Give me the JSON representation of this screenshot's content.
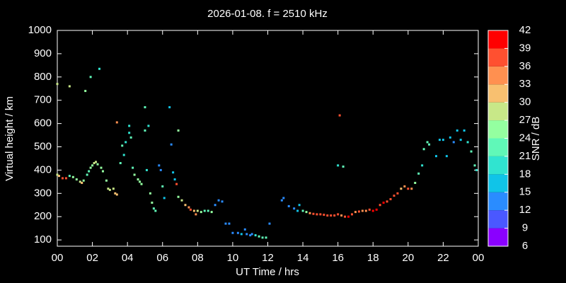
{
  "chart_data": {
    "type": "scatter",
    "title": "2026-01-08. f = 2510 kHz",
    "xlabel": "UT Time / hrs",
    "ylabel": "Virtual height / km",
    "xlim": [
      0,
      24
    ],
    "xticks": [
      {
        "value": 0,
        "label": "00"
      },
      {
        "value": 2,
        "label": "02"
      },
      {
        "value": 4,
        "label": "04"
      },
      {
        "value": 6,
        "label": "06"
      },
      {
        "value": 8,
        "label": "08"
      },
      10,
      12,
      14,
      16,
      18,
      20,
      22,
      {
        "value": 24,
        "label": "00"
      }
    ],
    "ylim": [
      73,
      1000
    ],
    "yticks": [
      100,
      200,
      300,
      400,
      500,
      600,
      700,
      800,
      900,
      1000
    ],
    "colorbar": {
      "label": "SNR / dB",
      "lim": [
        6,
        42
      ],
      "ticks": [
        6,
        9,
        12,
        15,
        18,
        21,
        24,
        27,
        30,
        33,
        36,
        39,
        42
      ],
      "colors": [
        "#8a00ff",
        "#4a58ff",
        "#2a8cff",
        "#10c4e8",
        "#30e4d0",
        "#60f8b8",
        "#94ffa0",
        "#c8e888",
        "#f8c070",
        "#ff9050",
        "#ff5030",
        "#ff0000"
      ]
    },
    "x": [
      0,
      0.1,
      0.3,
      0.5,
      0.7,
      0.9,
      1.1,
      1.3,
      1.4,
      1.5,
      1.7,
      1.8,
      1.9,
      2.0,
      2.1,
      2.2,
      2.3,
      2.5,
      2.6,
      2.8,
      2.9,
      3.0,
      3.2,
      3.3,
      3.4,
      0,
      0.7,
      1.6,
      1.9,
      2.4,
      3.4,
      3.6,
      3.7,
      3.8,
      3.9,
      4.1,
      4.1,
      4.2,
      4.3,
      4.4,
      4.6,
      4.7,
      4.8,
      5.0,
      5.0,
      5.2,
      5.1,
      5.3,
      5.4,
      5.5,
      5.6,
      5.8,
      5.9,
      6.0,
      6.1,
      6.4,
      6.5,
      6.6,
      6.7,
      6.8,
      6.9,
      6.9,
      7.1,
      7.3,
      7.5,
      7.6,
      7.8,
      7.9,
      8.0,
      8.2,
      8.4,
      8.6,
      8.8,
      9.0,
      9.2,
      9.4,
      9.6,
      9.8,
      10.0,
      10.3,
      10.5,
      10.7,
      10.8,
      11.0,
      11.1,
      11.3,
      11.5,
      11.7,
      11.9,
      12.1,
      12.8,
      12.9,
      13.2,
      13.5,
      13.7,
      13.8,
      14.0,
      14.2,
      14.4,
      14.6,
      14.8,
      15.0,
      15.2,
      15.4,
      15.6,
      15.8,
      16.0,
      16.1,
      16.2,
      16.4,
      16.6,
      16.8,
      17.0,
      17.2,
      17.4,
      17.6,
      17.8,
      18.0,
      18.2,
      18.4,
      18.6,
      18.8,
      19.0,
      19.2,
      19.4,
      19.6,
      19.8,
      20.0,
      20.2,
      20.4,
      20.6,
      20.8,
      20.9,
      21.1,
      21.2,
      21.6,
      21.8,
      22.0,
      22.2,
      22.4,
      22.6,
      22.8,
      23.0,
      23.2,
      23.4,
      23.6,
      23.8,
      23.9,
      16.0,
      16.3
    ],
    "values": [
      380,
      375,
      365,
      365,
      375,
      370,
      360,
      350,
      345,
      355,
      380,
      395,
      410,
      420,
      430,
      435,
      425,
      410,
      395,
      355,
      320,
      315,
      320,
      300,
      295,
      770,
      760,
      740,
      800,
      835,
      605,
      430,
      505,
      465,
      520,
      560,
      590,
      540,
      410,
      380,
      360,
      350,
      340,
      670,
      570,
      590,
      400,
      300,
      260,
      235,
      225,
      420,
      400,
      330,
      280,
      670,
      510,
      390,
      360,
      340,
      570,
      285,
      270,
      250,
      240,
      230,
      225,
      210,
      225,
      220,
      225,
      225,
      220,
      250,
      270,
      265,
      170,
      170,
      130,
      130,
      125,
      145,
      125,
      120,
      125,
      120,
      115,
      110,
      110,
      170,
      270,
      280,
      245,
      235,
      225,
      250,
      225,
      220,
      215,
      212,
      210,
      210,
      208,
      205,
      205,
      205,
      210,
      635,
      205,
      200,
      200,
      210,
      220,
      222,
      225,
      225,
      230,
      225,
      230,
      250,
      260,
      265,
      275,
      290,
      300,
      320,
      330,
      320,
      320,
      345,
      385,
      420,
      490,
      520,
      510,
      460,
      530,
      530,
      460,
      540,
      520,
      570,
      530,
      570,
      520,
      480,
      420,
      400,
      420,
      415
    ],
    "snr": [
      27,
      30,
      36,
      36,
      21,
      24,
      24,
      27,
      30,
      24,
      21,
      21,
      24,
      24,
      27,
      27,
      24,
      24,
      24,
      24,
      27,
      27,
      27,
      30,
      30,
      27,
      27,
      24,
      21,
      18,
      33,
      21,
      21,
      18,
      18,
      18,
      18,
      21,
      21,
      24,
      24,
      24,
      24,
      21,
      21,
      18,
      18,
      24,
      24,
      21,
      21,
      12,
      12,
      21,
      15,
      15,
      12,
      15,
      15,
      36,
      24,
      24,
      27,
      30,
      33,
      36,
      30,
      33,
      27,
      24,
      21,
      21,
      24,
      12,
      12,
      12,
      12,
      12,
      12,
      12,
      15,
      12,
      12,
      12,
      12,
      18,
      21,
      21,
      21,
      12,
      12,
      12,
      12,
      12,
      15,
      15,
      21,
      24,
      33,
      36,
      36,
      36,
      36,
      36,
      36,
      36,
      36,
      36,
      33,
      36,
      39,
      36,
      33,
      36,
      33,
      33,
      36,
      39,
      39,
      36,
      39,
      36,
      36,
      36,
      36,
      30,
      33,
      36,
      33,
      24,
      21,
      18,
      21,
      21,
      21,
      15,
      15,
      15,
      15,
      15,
      12,
      15,
      15,
      15,
      18,
      21,
      21,
      18,
      18,
      21
    ]
  }
}
